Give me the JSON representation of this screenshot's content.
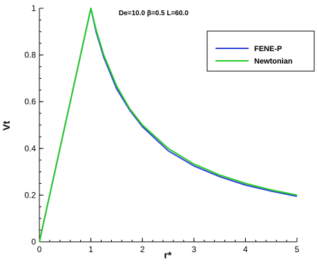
{
  "chart_data": {
    "type": "line",
    "title": "De=10.0  β=0.5  L=60.0",
    "xlabel": "r*",
    "ylabel": "Vt",
    "xlim": [
      0,
      5
    ],
    "ylim": [
      0,
      1
    ],
    "x_ticks": [
      0,
      1,
      2,
      3,
      4,
      5
    ],
    "x_tick_labels": [
      "0",
      "1",
      "2",
      "3",
      "4",
      "5"
    ],
    "y_ticks": [
      0,
      0.2,
      0.4,
      0.6,
      0.8,
      1
    ],
    "y_tick_labels": [
      "0",
      "0.2",
      "0.4",
      "0.6",
      "0.8",
      "1"
    ],
    "x_minor_step": 0.2,
    "y_minor_step": 0.05,
    "grid": false,
    "legend_position": "top-right",
    "series": [
      {
        "name": "FENE-P",
        "color": "#3344dd",
        "x": [
          0,
          0.5,
          1,
          1.1,
          1.25,
          1.5,
          1.75,
          2,
          2.5,
          3,
          3.5,
          4,
          4.5,
          5
        ],
        "y": [
          0,
          0.5,
          1,
          0.9,
          0.79,
          0.655,
          0.565,
          0.493,
          0.39,
          0.325,
          0.279,
          0.243,
          0.217,
          0.195
        ]
      },
      {
        "name": "Newtonian",
        "color": "#22cc22",
        "x": [
          0,
          0.5,
          1,
          1.1,
          1.25,
          1.5,
          1.75,
          2,
          2.5,
          3,
          3.5,
          4,
          4.5,
          5
        ],
        "y": [
          0,
          0.5,
          1,
          0.909,
          0.8,
          0.667,
          0.571,
          0.5,
          0.4,
          0.333,
          0.286,
          0.25,
          0.222,
          0.2
        ]
      }
    ]
  }
}
